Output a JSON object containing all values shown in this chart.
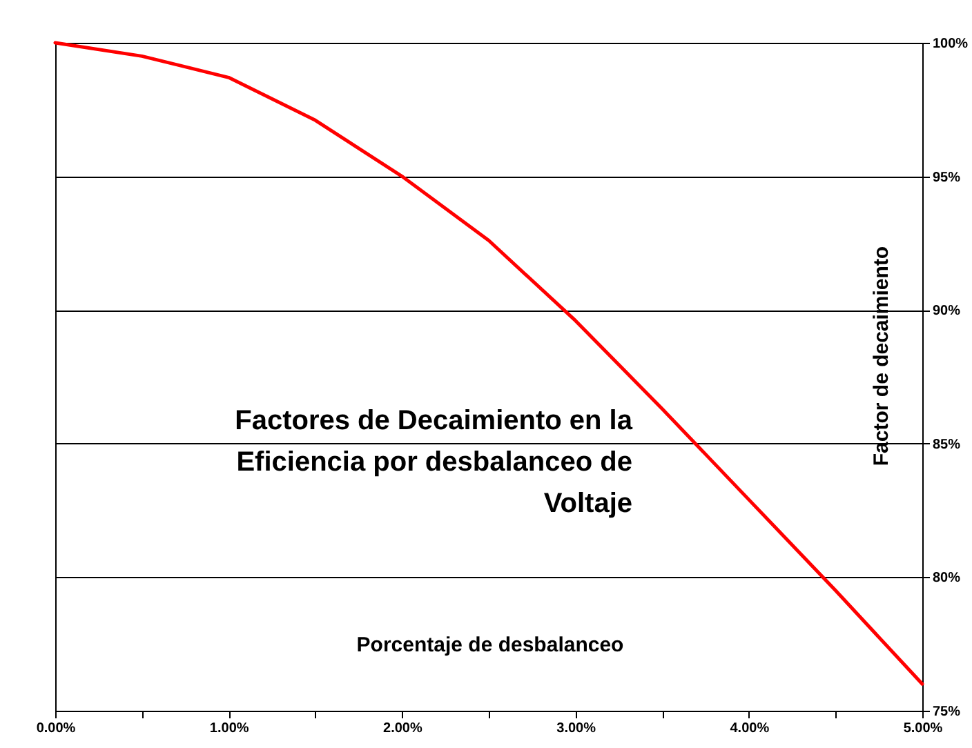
{
  "chart_data": {
    "type": "line",
    "title": "Factores de Decaimiento en la\nEficiencia por desbalanceo de\nVoltaje",
    "xlabel": "Porcentaje de desbalanceo",
    "ylabel": "Factor de decaimiento",
    "x": [
      0,
      0.5,
      1.0,
      1.5,
      2.0,
      2.5,
      3.0,
      3.5,
      4.0,
      4.5,
      5.0
    ],
    "series": [
      {
        "color": "#ff0000",
        "values": [
          100,
          99.5,
          98.7,
          97.1,
          95,
          92.6,
          89.6,
          86.3,
          82.9,
          79.5,
          76
        ]
      }
    ],
    "xlim": [
      0,
      5
    ],
    "ylim": [
      75,
      100
    ],
    "xticks": [
      {
        "value": 0,
        "label": "0.00%"
      },
      {
        "value": 0.5,
        "label": null
      },
      {
        "value": 1,
        "label": "1.00%"
      },
      {
        "value": 1.5,
        "label": null
      },
      {
        "value": 2,
        "label": "2.00%"
      },
      {
        "value": 2.5,
        "label": null
      },
      {
        "value": 3,
        "label": "3.00%"
      },
      {
        "value": 3.5,
        "label": null
      },
      {
        "value": 4,
        "label": "4.00%"
      },
      {
        "value": 4.5,
        "label": null
      },
      {
        "value": 5,
        "label": "5.00%"
      }
    ],
    "yticks": [
      {
        "value": 75,
        "label": "75%"
      },
      {
        "value": 80,
        "label": "80%"
      },
      {
        "value": 85,
        "label": "85%"
      },
      {
        "value": 90,
        "label": "90%"
      },
      {
        "value": 95,
        "label": "95%"
      },
      {
        "value": 100,
        "label": "100%"
      }
    ],
    "grid": "y",
    "marker": "none",
    "line_style": "solid"
  }
}
